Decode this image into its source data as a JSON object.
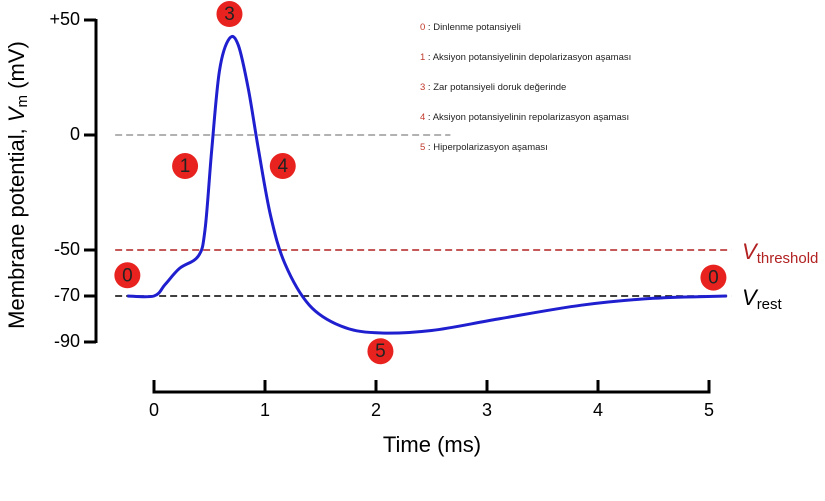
{
  "chart_data": {
    "type": "line",
    "y_label": {
      "main": "Membrane potential, ",
      "var": "V",
      "sub": "m",
      "unit": " (mV)"
    },
    "x_label": "Time (ms)",
    "xlim": [
      0,
      5
    ],
    "xticks": [
      0,
      1,
      2,
      3,
      4,
      5
    ],
    "ylim": [
      -90,
      50
    ],
    "yticks": [
      {
        "value": 50,
        "label": "+50"
      },
      0,
      -50,
      -70,
      -90
    ],
    "series": [
      {
        "name": "Membrane potential",
        "color": "#1f1fd0",
        "x": [
          -0.24,
          0,
          0.1,
          0.23,
          0.4,
          0.46,
          0.52,
          0.59,
          0.68,
          0.76,
          0.85,
          0.94,
          1.05,
          1.18,
          1.4,
          1.68,
          2.0,
          2.5,
          3.1,
          3.85,
          4.5,
          5.16
        ],
        "values": [
          -70,
          -70,
          -65,
          -58,
          -52.6,
          -41,
          -6.5,
          28,
          42,
          39,
          20,
          -6,
          -35,
          -56,
          -74,
          -83,
          -86,
          -85,
          -80,
          -74,
          -71,
          -70
        ]
      }
    ],
    "reference_lines": [
      {
        "value": 0,
        "color": "#999999",
        "from": -0.35,
        "to": 2.67
      },
      {
        "value": -50,
        "color": "#b22222",
        "from": -0.35,
        "to": 5.2,
        "label": {
          "var": "V",
          "sub": "threshold"
        }
      },
      {
        "value": -70,
        "color": "#000000",
        "from": -0.35,
        "to": 5.2,
        "label": {
          "var": "V",
          "sub": "rest"
        }
      }
    ],
    "markers": [
      {
        "label": "0",
        "x": -0.24,
        "y": -61
      },
      {
        "label": "1",
        "x": 0.28,
        "y": -13.5
      },
      {
        "label": "3",
        "x": 0.68,
        "y": 52.6
      },
      {
        "label": "4",
        "x": 1.16,
        "y": -13.5
      },
      {
        "label": "5",
        "x": 2.04,
        "y": -94
      },
      {
        "label": "0",
        "x": 5.04,
        "y": -62
      }
    ],
    "marker_color": "#e8231f",
    "legend": [
      {
        "key": "0",
        "text": " : Dinlenme potansiyeli"
      },
      {
        "key": "1",
        "text": " : Aksiyon potansiyelinin depolarizasyon aşaması"
      },
      {
        "key": "3",
        "text": " : Zar potansiyeli doruk değerinde"
      },
      {
        "key": "4",
        "text": " : Aksiyon potansiyelinin repolarizasyon aşaması"
      },
      {
        "key": "5",
        "text": " : Hiperpolarizasyon aşaması"
      }
    ]
  }
}
